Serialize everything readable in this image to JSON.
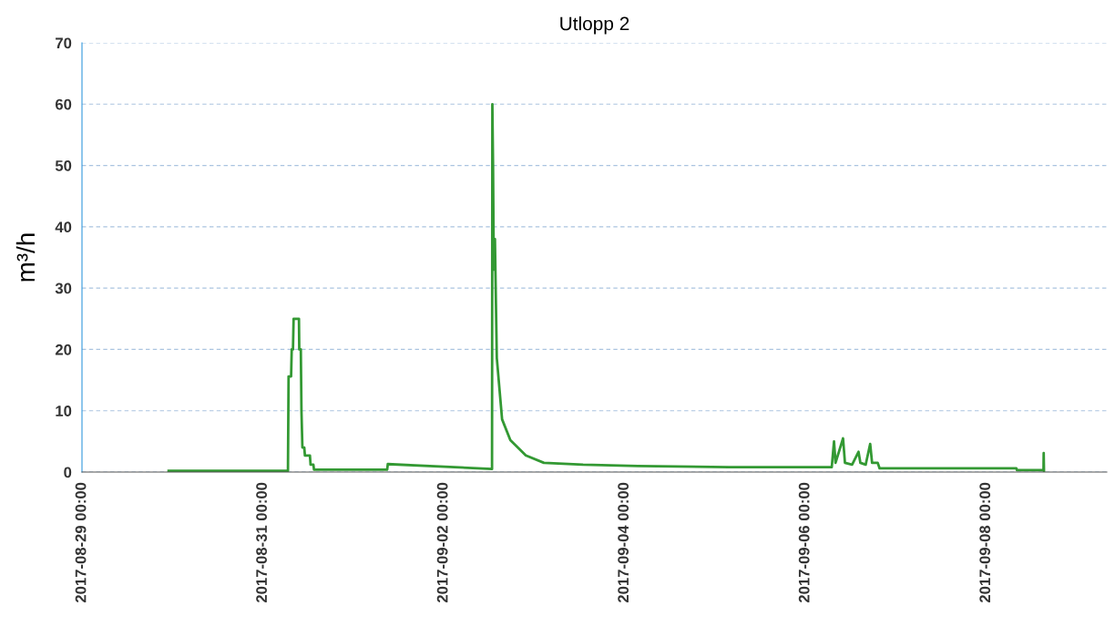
{
  "chart_data": {
    "type": "line",
    "title": "Utlopp 2",
    "ylabel": "m³/h",
    "xlim": [
      "2017-08-29T00:00",
      "2017-09-09T08:00"
    ],
    "xticks": [
      {
        "value": "2017-08-29T00:00",
        "label": "2017-08-29 00:00"
      },
      {
        "value": "2017-08-31T00:00",
        "label": "2017-08-31 00:00"
      },
      {
        "value": "2017-09-02T00:00",
        "label": "2017-09-02 00:00"
      },
      {
        "value": "2017-09-04T00:00",
        "label": "2017-09-04 00:00"
      },
      {
        "value": "2017-09-06T00:00",
        "label": "2017-09-06 00:00"
      },
      {
        "value": "2017-09-08T00:00",
        "label": "2017-09-08 00:00"
      }
    ],
    "ylim": [
      0,
      70
    ],
    "yticks": [
      0,
      10,
      20,
      30,
      40,
      50,
      60,
      70
    ],
    "grid": "y",
    "marker": "none",
    "line_style": "solid",
    "series": [
      {
        "color": "#339933",
        "x": [
          "2017-08-29T23:00",
          "2017-08-31T06:40",
          "2017-08-31T06:50",
          "2017-08-31T07:30",
          "2017-08-31T07:40",
          "2017-08-31T08:00",
          "2017-08-31T08:10",
          "2017-08-31T09:35",
          "2017-08-31T09:40",
          "2017-08-31T10:05",
          "2017-08-31T10:15",
          "2017-08-31T10:30",
          "2017-08-31T11:00",
          "2017-08-31T11:10",
          "2017-08-31T12:30",
          "2017-08-31T12:40",
          "2017-08-31T13:25",
          "2017-08-31T13:35",
          "2017-09-01T09:00",
          "2017-09-01T09:10",
          "2017-09-02T12:50",
          "2017-09-02T12:55",
          "2017-09-02T13:06",
          "2017-09-02T13:18",
          "2017-09-02T13:36",
          "2017-09-02T14:06",
          "2017-09-02T15:30",
          "2017-09-02T17:42",
          "2017-09-02T21:48",
          "2017-09-03T02:36",
          "2017-09-03T13:00",
          "2017-09-04T03:36",
          "2017-09-05T03:42",
          "2017-09-06T07:00",
          "2017-09-06T07:06",
          "2017-09-06T07:36",
          "2017-09-06T08:00",
          "2017-09-06T10:00",
          "2017-09-06T10:30",
          "2017-09-06T12:24",
          "2017-09-06T14:06",
          "2017-09-06T14:36",
          "2017-09-06T16:00",
          "2017-09-06T17:12",
          "2017-09-06T17:42",
          "2017-09-06T19:12",
          "2017-09-06T19:42",
          "2017-09-08T08:00",
          "2017-09-08T08:10",
          "2017-09-08T15:12",
          "2017-09-08T15:15",
          "2017-09-08T15:20"
        ],
        "values": [
          0.2,
          0.2,
          15.6,
          15.6,
          20,
          20,
          25,
          25,
          20,
          20,
          10,
          4,
          4,
          2.7,
          2.7,
          1.2,
          1.2,
          0.4,
          0.4,
          1.3,
          0.5,
          60,
          50,
          33,
          38,
          18.6,
          8.6,
          5.2,
          2.7,
          1.5,
          1.2,
          1.0,
          0.8,
          0.8,
          1.5,
          5,
          1.5,
          5.5,
          1.5,
          1.2,
          3.3,
          1.5,
          1.2,
          4.6,
          1.5,
          1.5,
          0.6,
          0.6,
          0.3,
          0.3,
          3.1,
          0
        ]
      }
    ]
  }
}
